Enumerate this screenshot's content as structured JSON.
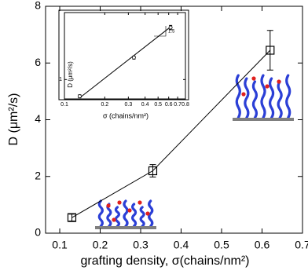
{
  "chart_data": [
    {
      "type": "line",
      "ylabel": "D (μm²/s)",
      "xlabel": "grafting density, σ(chains/nm²)",
      "x": [
        0.13,
        0.33,
        0.62
      ],
      "values": [
        0.55,
        2.2,
        6.45
      ],
      "errors": [
        0.12,
        0.22,
        0.7
      ],
      "color": "#000000",
      "marker": "square",
      "xlim": [
        0.065,
        0.7
      ],
      "xticks": [
        0.1,
        0.2,
        0.3,
        0.4,
        0.5,
        0.6,
        0.7
      ],
      "ylim": [
        0,
        8
      ],
      "yticks": [
        0,
        2,
        4,
        6,
        8
      ]
    },
    {
      "type": "line",
      "ylabel": "D (μm²/s)",
      "xlabel": "σ (chains/nm²)",
      "x": [
        0.13,
        0.33,
        0.62
      ],
      "values": [
        0.55,
        2.2,
        6.45
      ],
      "errors": [
        0.03,
        0.12,
        0.5
      ],
      "fit": {
        "x": [
          0.13,
          0.62
        ],
        "values": [
          0.52,
          6.6
        ]
      },
      "annotation": "1.5",
      "color": "#000000",
      "marker": "circle",
      "xscale": "log",
      "yscale": "log",
      "xlim": [
        0.1,
        0.8
      ],
      "xticks": [
        0.1,
        0.2,
        0.3,
        0.4,
        0.5,
        0.6,
        0.7,
        0.8
      ],
      "ylim": [
        0.5,
        11
      ],
      "yticks": [
        1
      ]
    }
  ]
}
